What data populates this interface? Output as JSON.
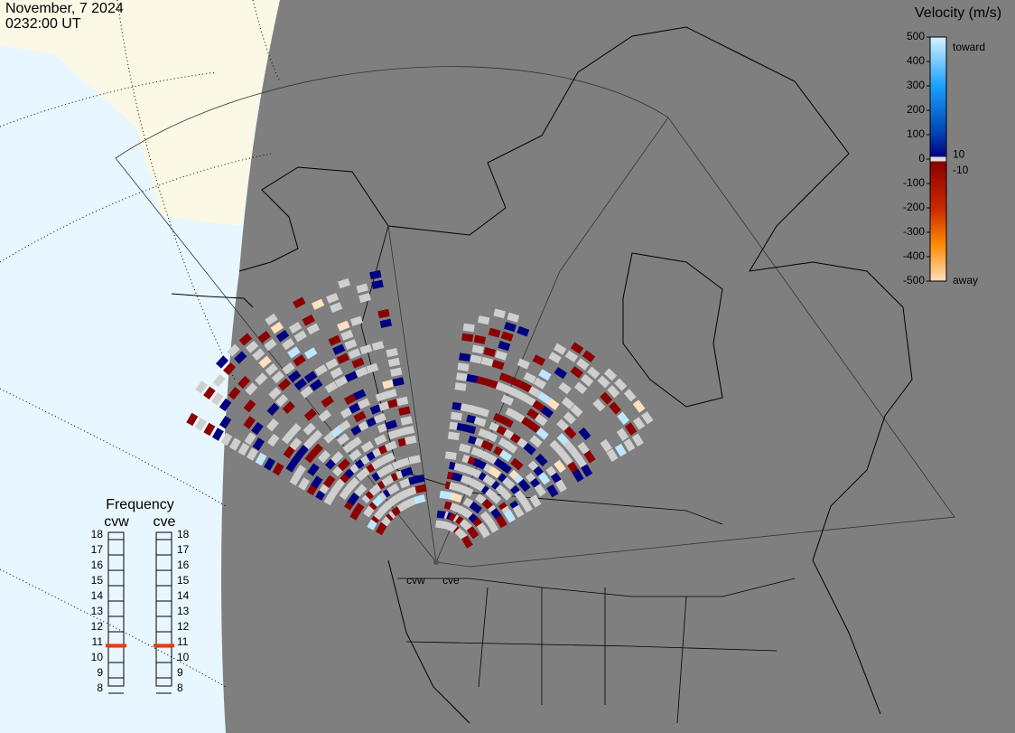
{
  "header": {
    "date": "November, 7 2024",
    "time": "0232:00 UT"
  },
  "velocity_scale": {
    "title": "Velocity (m/s)",
    "ticks": [
      500,
      400,
      300,
      200,
      100,
      0,
      -100,
      -200,
      -300,
      -400,
      -500
    ],
    "inner_ticks": [
      10,
      -10
    ],
    "toward": "toward",
    "away": "away"
  },
  "frequency": {
    "title": "Frequency",
    "ticks": [
      8,
      9,
      10,
      11,
      12,
      13,
      14,
      15,
      16,
      17,
      18
    ],
    "radars": [
      {
        "name": "cvw",
        "value": 10.8
      },
      {
        "name": "cve",
        "value": 10.8
      }
    ]
  },
  "sites": [
    "cvw",
    "cve"
  ]
}
